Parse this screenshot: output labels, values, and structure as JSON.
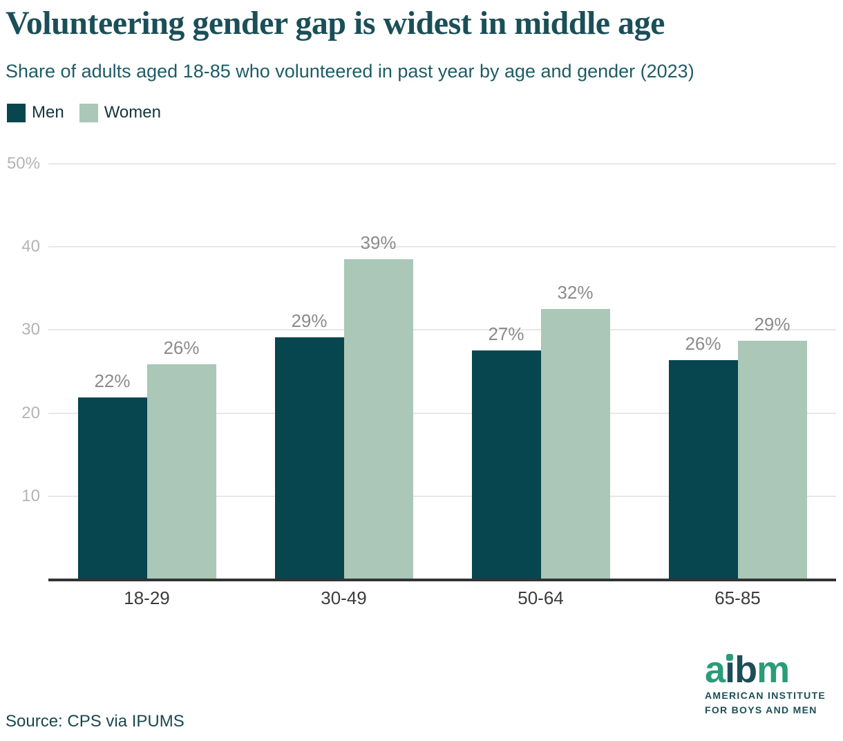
{
  "header": {
    "title": "Volunteering gender gap is widest in middle age",
    "subtitle": "Share of adults aged 18-85 who volunteered in past year by age and gender (2023)"
  },
  "legend": {
    "items": [
      {
        "label": "Men",
        "color": "#07454f"
      },
      {
        "label": "Women",
        "color": "#aac7b7"
      }
    ]
  },
  "chart_data": {
    "type": "bar",
    "title": "Volunteering gender gap is widest in middle age",
    "subtitle": "Share of adults aged 18-85 who volunteered in past year by age and gender (2023)",
    "categories": [
      "18-29",
      "30-49",
      "50-64",
      "65-85"
    ],
    "series": [
      {
        "name": "Men",
        "color": "#07454f",
        "values": [
          21.9,
          29.1,
          27.5,
          26.4
        ],
        "value_labels": [
          "22%",
          "29%",
          "27%",
          "26%"
        ]
      },
      {
        "name": "Women",
        "color": "#aac7b7",
        "values": [
          25.9,
          38.5,
          32.5,
          28.7
        ],
        "value_labels": [
          "26%",
          "39%",
          "32%",
          "29%"
        ]
      }
    ],
    "xlabel": "",
    "ylabel": "",
    "ylim": [
      0,
      50
    ],
    "y_ticks": [
      {
        "value": 10,
        "label": "10"
      },
      {
        "value": 20,
        "label": "20"
      },
      {
        "value": 30,
        "label": "30"
      },
      {
        "value": 40,
        "label": "40"
      },
      {
        "value": 50,
        "label": "50%"
      }
    ],
    "grid": true,
    "legend_position": "top-left"
  },
  "footer": {
    "source": "Source: CPS via IPUMS"
  },
  "logo": {
    "letters": [
      {
        "ch": "a",
        "color": "#2a9c77"
      },
      {
        "ch": "i",
        "color": "#1d4e57",
        "dot": "#2a9c77"
      },
      {
        "ch": "b",
        "color": "#1d4e57"
      },
      {
        "ch": "m",
        "color": "#2a9c77"
      }
    ],
    "line1": "AMERICAN INSTITUTE",
    "line2": "FOR BOYS AND MEN"
  },
  "colors": {
    "men_bar": "#07454f",
    "women_bar": "#aac7b7",
    "title_text": "#1b4f58",
    "subtitle_text": "#1e5c66",
    "tick_label": "#b4b4b4",
    "value_label": "#8b8b8b",
    "category_label": "#3c3c3c",
    "gridline": "#e7e7e7",
    "axis_line": "#333333",
    "logo_green": "#2a9c77",
    "logo_dark": "#1d4e57"
  }
}
